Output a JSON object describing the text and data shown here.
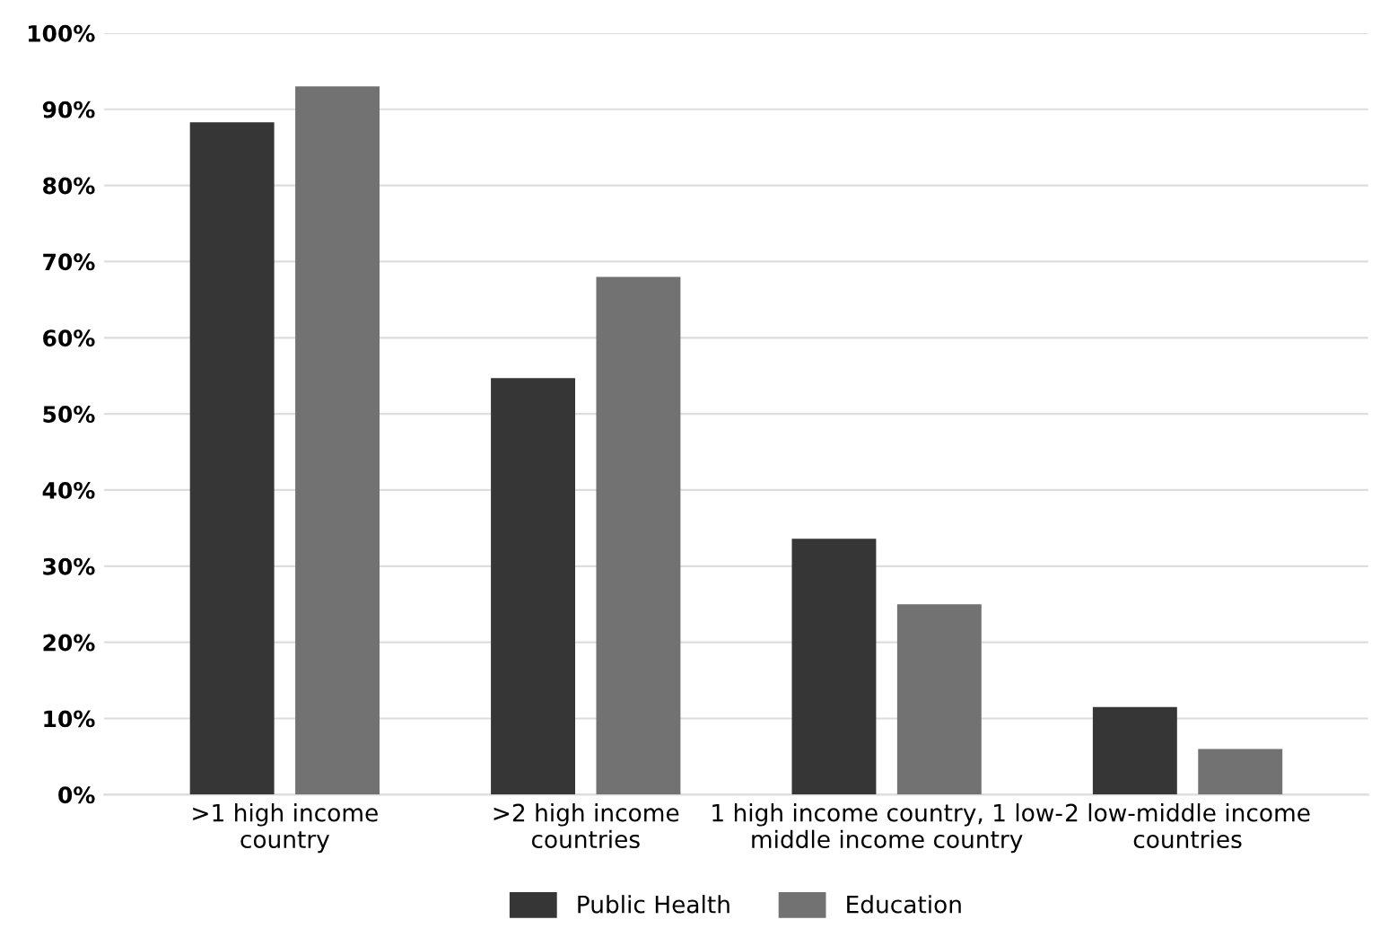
{
  "chart_data": {
    "type": "bar",
    "categories": [
      ">1 high income\ncountry",
      ">2 high income\ncountries",
      "1 high income country, 1 low-\nmiddle income country",
      "2 low-middle income\ncountries"
    ],
    "series": [
      {
        "name": "Public Health",
        "color": "#363636",
        "values": [
          88.3,
          54.7,
          33.6,
          11.5
        ]
      },
      {
        "name": "Education",
        "color": "#727272",
        "values": [
          93,
          68,
          25,
          6
        ]
      }
    ],
    "ylim": [
      0,
      100
    ],
    "yticks": [
      {
        "value": 0,
        "label": "0%"
      },
      {
        "value": 10,
        "label": "10%"
      },
      {
        "value": 20,
        "label": "20%"
      },
      {
        "value": 30,
        "label": "30%"
      },
      {
        "value": 40,
        "label": "40%"
      },
      {
        "value": 50,
        "label": "50%"
      },
      {
        "value": 60,
        "label": "60%"
      },
      {
        "value": 70,
        "label": "70%"
      },
      {
        "value": 80,
        "label": "80%"
      },
      {
        "value": 90,
        "label": "90%"
      },
      {
        "value": 100,
        "label": "100%"
      }
    ],
    "grid": "y",
    "legend": "bottom"
  }
}
